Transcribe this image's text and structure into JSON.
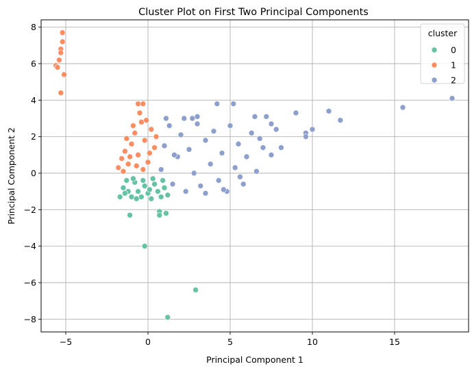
{
  "chart_data": {
    "type": "scatter",
    "title": "Cluster Plot on First Two Principal Components",
    "xlabel": "Principal Component 1",
    "ylabel": "Principal Component 2",
    "xlim": [
      -6.5,
      19.5
    ],
    "ylim": [
      -8.7,
      8.4
    ],
    "x_ticks": [
      -5,
      0,
      5,
      10,
      15
    ],
    "y_ticks": [
      -8,
      -6,
      -4,
      -2,
      0,
      2,
      4,
      6,
      8
    ],
    "x_tick_labels": [
      "−5",
      "0",
      "5",
      "10",
      "15"
    ],
    "y_tick_labels": [
      "−8",
      "−6",
      "−4",
      "−2",
      "0",
      "2",
      "4",
      "6",
      "8"
    ],
    "grid": true,
    "legend": {
      "title": "cluster",
      "placement": "top-right"
    },
    "series": [
      {
        "name": "0",
        "color": "#66c2a5",
        "points": [
          [
            -1.7,
            -1.3
          ],
          [
            -1.5,
            -0.8
          ],
          [
            -1.2,
            -1.0
          ],
          [
            -1.0,
            -1.3
          ],
          [
            -0.8,
            -0.5
          ],
          [
            -0.6,
            -1.0
          ],
          [
            -0.4,
            -1.3
          ],
          [
            -0.2,
            -0.7
          ],
          [
            0.0,
            -1.1
          ],
          [
            0.2,
            -1.4
          ],
          [
            0.4,
            -0.6
          ],
          [
            0.6,
            -1.0
          ],
          [
            0.8,
            -1.3
          ],
          [
            1.0,
            -0.8
          ],
          [
            1.2,
            -1.2
          ],
          [
            -1.3,
            -0.4
          ],
          [
            -0.9,
            -0.3
          ],
          [
            -0.3,
            -0.4
          ],
          [
            0.3,
            -0.3
          ],
          [
            0.9,
            -0.4
          ],
          [
            -1.1,
            -2.3
          ],
          [
            -0.2,
            -4.0
          ],
          [
            0.7,
            -2.1
          ],
          [
            0.7,
            -2.3
          ],
          [
            1.1,
            -2.2
          ],
          [
            2.9,
            -6.4
          ],
          [
            1.2,
            -7.9
          ],
          [
            -1.4,
            -1.1
          ],
          [
            -0.7,
            -1.4
          ],
          [
            0.1,
            -0.9
          ]
        ]
      },
      {
        "name": "1",
        "color": "#fc8d62",
        "points": [
          [
            -5.2,
            7.7
          ],
          [
            -5.2,
            7.2
          ],
          [
            -5.3,
            6.8
          ],
          [
            -5.3,
            6.6
          ],
          [
            -5.4,
            6.2
          ],
          [
            -5.6,
            5.9
          ],
          [
            -5.5,
            5.8
          ],
          [
            -5.1,
            5.4
          ],
          [
            -5.3,
            4.4
          ],
          [
            -1.8,
            0.3
          ],
          [
            -1.6,
            0.8
          ],
          [
            -1.4,
            1.2
          ],
          [
            -1.2,
            0.5
          ],
          [
            -1.0,
            1.6
          ],
          [
            -0.8,
            2.2
          ],
          [
            -0.6,
            1.0
          ],
          [
            -0.4,
            2.8
          ],
          [
            -0.2,
            1.8
          ],
          [
            0.0,
            0.6
          ],
          [
            0.2,
            2.4
          ],
          [
            0.4,
            1.4
          ],
          [
            -1.5,
            0.1
          ],
          [
            -1.1,
            0.9
          ],
          [
            -0.7,
            0.4
          ],
          [
            -0.3,
            0.2
          ],
          [
            0.1,
            1.1
          ],
          [
            -0.9,
            2.6
          ],
          [
            -0.5,
            3.3
          ],
          [
            -0.6,
            3.8
          ],
          [
            -0.3,
            3.8
          ],
          [
            0.5,
            2.0
          ],
          [
            -1.3,
            1.9
          ],
          [
            -0.1,
            2.9
          ]
        ]
      },
      {
        "name": "2",
        "color": "#8da0cb",
        "points": [
          [
            0.8,
            0.2
          ],
          [
            1.0,
            1.5
          ],
          [
            1.3,
            2.6
          ],
          [
            1.5,
            -0.6
          ],
          [
            1.8,
            0.9
          ],
          [
            2.0,
            2.1
          ],
          [
            2.3,
            -1.0
          ],
          [
            2.5,
            1.3
          ],
          [
            2.8,
            0.0
          ],
          [
            3.0,
            2.7
          ],
          [
            3.2,
            -0.7
          ],
          [
            3.5,
            1.8
          ],
          [
            3.8,
            0.5
          ],
          [
            4.0,
            2.3
          ],
          [
            4.3,
            -0.4
          ],
          [
            4.5,
            1.1
          ],
          [
            4.8,
            -1.0
          ],
          [
            5.0,
            2.6
          ],
          [
            5.3,
            0.3
          ],
          [
            5.5,
            1.6
          ],
          [
            5.8,
            -0.6
          ],
          [
            6.0,
            0.9
          ],
          [
            6.3,
            2.2
          ],
          [
            6.6,
            0.1
          ],
          [
            7.0,
            1.4
          ],
          [
            7.5,
            1.0
          ],
          [
            1.1,
            3.0
          ],
          [
            2.2,
            3.0
          ],
          [
            3.0,
            3.1
          ],
          [
            4.2,
            3.8
          ],
          [
            5.2,
            3.8
          ],
          [
            6.5,
            3.1
          ],
          [
            7.2,
            3.1
          ],
          [
            7.5,
            2.7
          ],
          [
            7.8,
            2.4
          ],
          [
            9.0,
            3.3
          ],
          [
            9.6,
            2.2
          ],
          [
            9.6,
            2.0
          ],
          [
            10.0,
            2.4
          ],
          [
            11.0,
            3.4
          ],
          [
            11.7,
            2.9
          ],
          [
            15.5,
            3.6
          ],
          [
            18.5,
            4.1
          ],
          [
            3.5,
            -1.1
          ],
          [
            4.6,
            -0.9
          ],
          [
            5.6,
            -0.2
          ],
          [
            6.8,
            1.9
          ],
          [
            8.1,
            1.4
          ],
          [
            2.7,
            3.0
          ],
          [
            1.6,
            1.0
          ]
        ]
      }
    ]
  }
}
